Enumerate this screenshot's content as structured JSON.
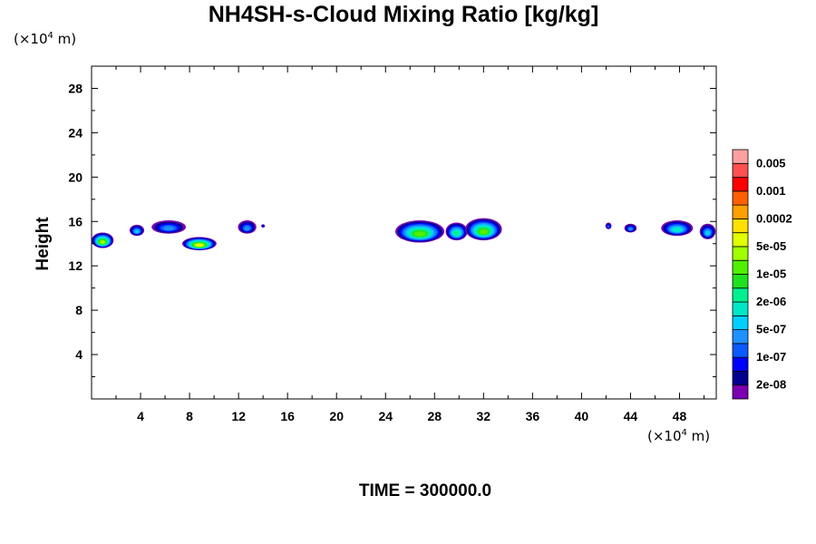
{
  "chart_data": {
    "type": "heatmap",
    "title": "NH4SH-s-Cloud Mixing Ratio [kg/kg]",
    "ylabel": "Height",
    "xunit": "(×10",
    "unit_exp": "4",
    "unit_m": " m)",
    "footer": "TIME = 300000.0",
    "xlim": [
      0,
      51
    ],
    "ylim": [
      0,
      30
    ],
    "x_ticks": [
      4,
      8,
      12,
      16,
      20,
      24,
      28,
      32,
      36,
      40,
      44,
      48
    ],
    "y_ticks": [
      4,
      8,
      12,
      16,
      20,
      24,
      28
    ],
    "colorbar": {
      "colors": [
        "#7a00b0",
        "#00008c",
        "#0000ff",
        "#0a5aff",
        "#1e90ff",
        "#00d0ff",
        "#00e8c8",
        "#00f090",
        "#20e020",
        "#50f000",
        "#a0ff00",
        "#e0ff00",
        "#ffe000",
        "#ffa000",
        "#ff6000",
        "#ff0000",
        "#ff5050",
        "#ffa0a0"
      ],
      "labels": [
        "2e-08",
        "1e-07",
        "5e-07",
        "2e-06",
        "1e-05",
        "5e-05",
        "0.0002",
        "0.001",
        "0.005"
      ]
    },
    "cloud_blobs": [
      {
        "x": 0.9,
        "y": 14.3,
        "w": 1.8,
        "h": 1.4,
        "level": 10
      },
      {
        "x": 3.7,
        "y": 15.2,
        "w": 1.2,
        "h": 1.0,
        "level": 5
      },
      {
        "x": 6.3,
        "y": 15.5,
        "w": 2.8,
        "h": 1.2,
        "level": 4
      },
      {
        "x": 8.8,
        "y": 14.0,
        "w": 2.8,
        "h": 1.2,
        "level": 11
      },
      {
        "x": 12.7,
        "y": 15.5,
        "w": 1.5,
        "h": 1.2,
        "level": 4
      },
      {
        "x": 14.0,
        "y": 15.6,
        "w": 0.3,
        "h": 0.3,
        "level": 2
      },
      {
        "x": 26.8,
        "y": 15.1,
        "w": 4.0,
        "h": 2.0,
        "level": 9
      },
      {
        "x": 29.8,
        "y": 15.1,
        "w": 1.8,
        "h": 1.6,
        "level": 7
      },
      {
        "x": 32.0,
        "y": 15.3,
        "w": 3.0,
        "h": 2.0,
        "level": 9
      },
      {
        "x": 42.2,
        "y": 15.6,
        "w": 0.5,
        "h": 0.6,
        "level": 3
      },
      {
        "x": 44.0,
        "y": 15.4,
        "w": 1.0,
        "h": 0.8,
        "level": 4
      },
      {
        "x": 47.8,
        "y": 15.4,
        "w": 2.6,
        "h": 1.4,
        "level": 6
      },
      {
        "x": 50.3,
        "y": 15.1,
        "w": 1.3,
        "h": 1.4,
        "level": 5
      }
    ]
  }
}
